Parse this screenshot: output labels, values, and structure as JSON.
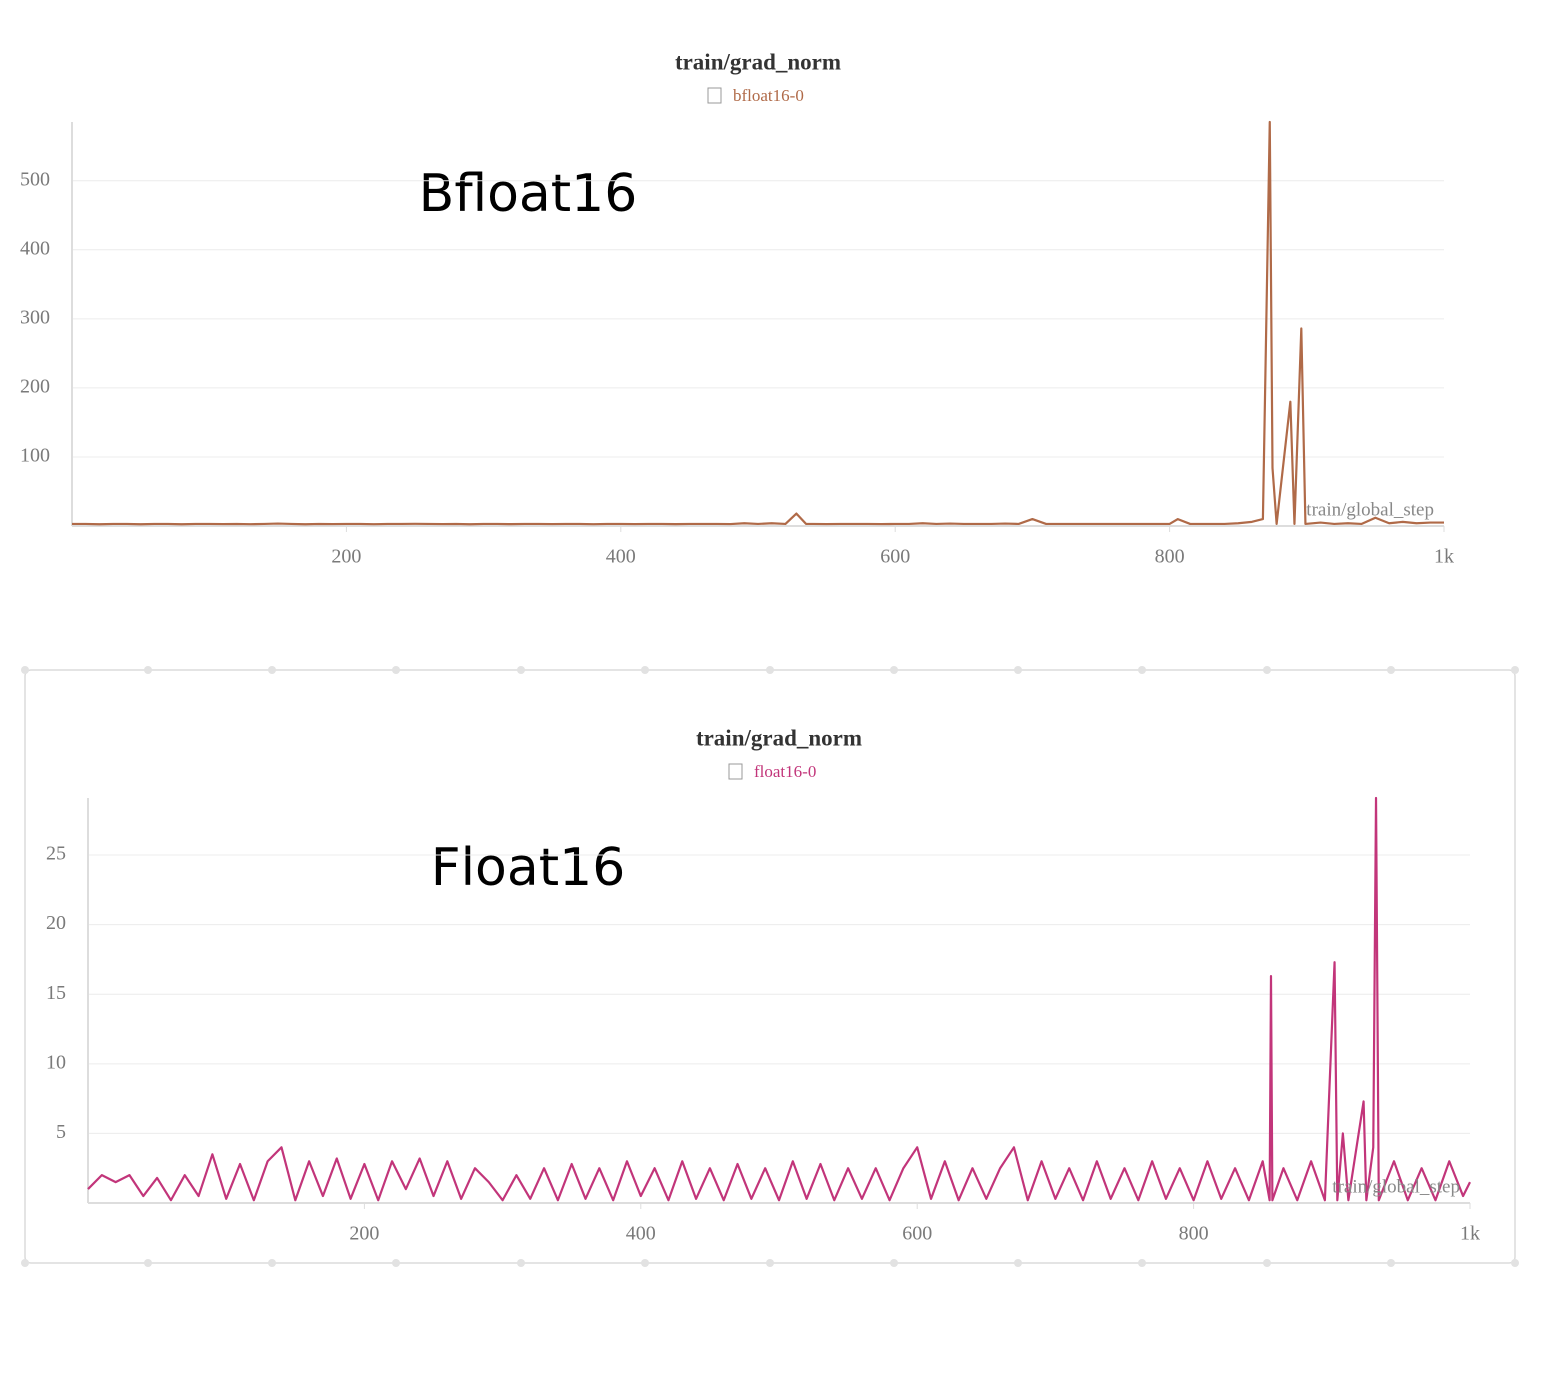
{
  "chart_data": [
    {
      "type": "line",
      "title": "train/grad_norm",
      "annotation": "Bfloat16",
      "xlabel": "train/global_step",
      "x": [
        0,
        10,
        20,
        30,
        40,
        50,
        60,
        70,
        80,
        90,
        100,
        110,
        120,
        130,
        140,
        150,
        160,
        170,
        180,
        190,
        200,
        210,
        220,
        230,
        240,
        250,
        260,
        270,
        280,
        290,
        300,
        310,
        320,
        330,
        340,
        350,
        360,
        370,
        380,
        390,
        400,
        410,
        420,
        430,
        440,
        450,
        460,
        470,
        480,
        490,
        500,
        510,
        520,
        528,
        535,
        540,
        550,
        560,
        570,
        580,
        590,
        600,
        610,
        620,
        630,
        640,
        650,
        660,
        670,
        680,
        690,
        700,
        710,
        720,
        730,
        740,
        750,
        760,
        770,
        780,
        790,
        800,
        806,
        815,
        820,
        830,
        840,
        850,
        860,
        868,
        873,
        875,
        878,
        888,
        891,
        896,
        899,
        910,
        920,
        930,
        940,
        950,
        960,
        970,
        980,
        990,
        1000
      ],
      "series": [
        {
          "name": "bfloat16-0",
          "color": "#b06a48",
          "values": [
            3,
            3,
            2.5,
            3,
            3,
            2.5,
            3,
            3,
            2.5,
            3,
            3,
            2.8,
            3,
            2.6,
            3,
            3.5,
            3,
            2.5,
            3,
            2.8,
            3,
            3,
            2.6,
            3,
            3,
            3.2,
            3,
            2.8,
            3,
            2.5,
            3,
            3,
            2.7,
            3,
            3,
            2.8,
            3,
            3,
            2.6,
            3,
            3,
            2.8,
            3,
            3,
            2.7,
            3,
            3,
            3,
            2.8,
            4,
            3,
            4,
            3,
            18,
            3,
            3,
            2.8,
            3,
            3,
            3,
            2.8,
            3,
            3,
            4,
            3,
            3.5,
            3,
            3,
            3,
            3.5,
            3,
            10,
            3,
            3,
            3,
            3,
            3,
            3,
            3,
            3,
            3,
            3,
            10,
            3,
            3,
            3,
            3,
            4,
            6,
            10,
            585,
            84,
            3,
            180,
            3,
            286,
            3,
            5,
            3,
            4,
            3,
            12,
            4,
            6,
            4,
            5,
            5
          ]
        }
      ],
      "xlim": [
        0,
        1000
      ],
      "ylim": [
        0,
        585
      ],
      "xticks": [
        200,
        400,
        600,
        800,
        {
          "value": 1000,
          "label": "1k"
        }
      ],
      "yticks": [
        100,
        200,
        300,
        400,
        500
      ],
      "grid": true
    },
    {
      "type": "line",
      "title": "train/grad_norm",
      "annotation": "Float16",
      "xlabel": "train/global_step",
      "x": [
        0,
        10,
        20,
        30,
        40,
        50,
        60,
        70,
        80,
        90,
        100,
        110,
        120,
        130,
        140,
        150,
        160,
        170,
        180,
        190,
        200,
        210,
        220,
        230,
        240,
        250,
        260,
        270,
        280,
        290,
        300,
        310,
        320,
        330,
        340,
        350,
        360,
        370,
        380,
        390,
        400,
        410,
        420,
        430,
        440,
        450,
        460,
        470,
        480,
        490,
        500,
        510,
        520,
        530,
        540,
        550,
        560,
        570,
        580,
        590,
        600,
        610,
        620,
        630,
        640,
        650,
        660,
        670,
        680,
        690,
        700,
        710,
        720,
        730,
        740,
        750,
        760,
        770,
        780,
        790,
        800,
        810,
        820,
        830,
        840,
        850,
        855,
        856,
        857,
        865,
        875,
        885,
        895,
        902,
        904,
        908,
        912,
        923,
        925,
        930,
        932,
        934,
        945,
        955,
        965,
        975,
        985,
        995,
        1000
      ],
      "series": [
        {
          "name": "float16-0",
          "color": "#c2357a",
          "values": [
            1,
            2,
            1.5,
            2,
            0.5,
            1.8,
            0.2,
            2,
            0.5,
            3.5,
            0.3,
            2.8,
            0.2,
            3,
            4,
            0.2,
            3,
            0.5,
            3.2,
            0.3,
            2.8,
            0.2,
            3,
            1,
            3.2,
            0.5,
            3,
            0.3,
            2.5,
            1.5,
            0.2,
            2,
            0.3,
            2.5,
            0.2,
            2.8,
            0.3,
            2.5,
            0.2,
            3,
            0.5,
            2.5,
            0.2,
            3,
            0.3,
            2.5,
            0.2,
            2.8,
            0.3,
            2.5,
            0.2,
            3,
            0.3,
            2.8,
            0.2,
            2.5,
            0.3,
            2.5,
            0.2,
            2.5,
            4,
            0.3,
            3,
            0.2,
            2.5,
            0.3,
            2.5,
            4,
            0.2,
            3,
            0.3,
            2.5,
            0.2,
            3,
            0.3,
            2.5,
            0.2,
            3,
            0.3,
            2.5,
            0.2,
            3,
            0.3,
            2.5,
            0.2,
            3,
            0.2,
            16.3,
            0.2,
            2.5,
            0.2,
            3,
            0.2,
            17.3,
            0.2,
            5,
            0.2,
            7.3,
            0.2,
            4,
            29.1,
            0.2,
            3,
            0.2,
            2.5,
            0.2,
            3,
            0.5,
            1.5
          ]
        }
      ],
      "xlim": [
        0,
        1000
      ],
      "ylim": [
        0,
        29.1
      ],
      "xticks": [
        200,
        400,
        600,
        800,
        {
          "value": 1000,
          "label": "1k"
        }
      ],
      "yticks": [
        5,
        10,
        15,
        20,
        25
      ],
      "grid": true
    }
  ]
}
